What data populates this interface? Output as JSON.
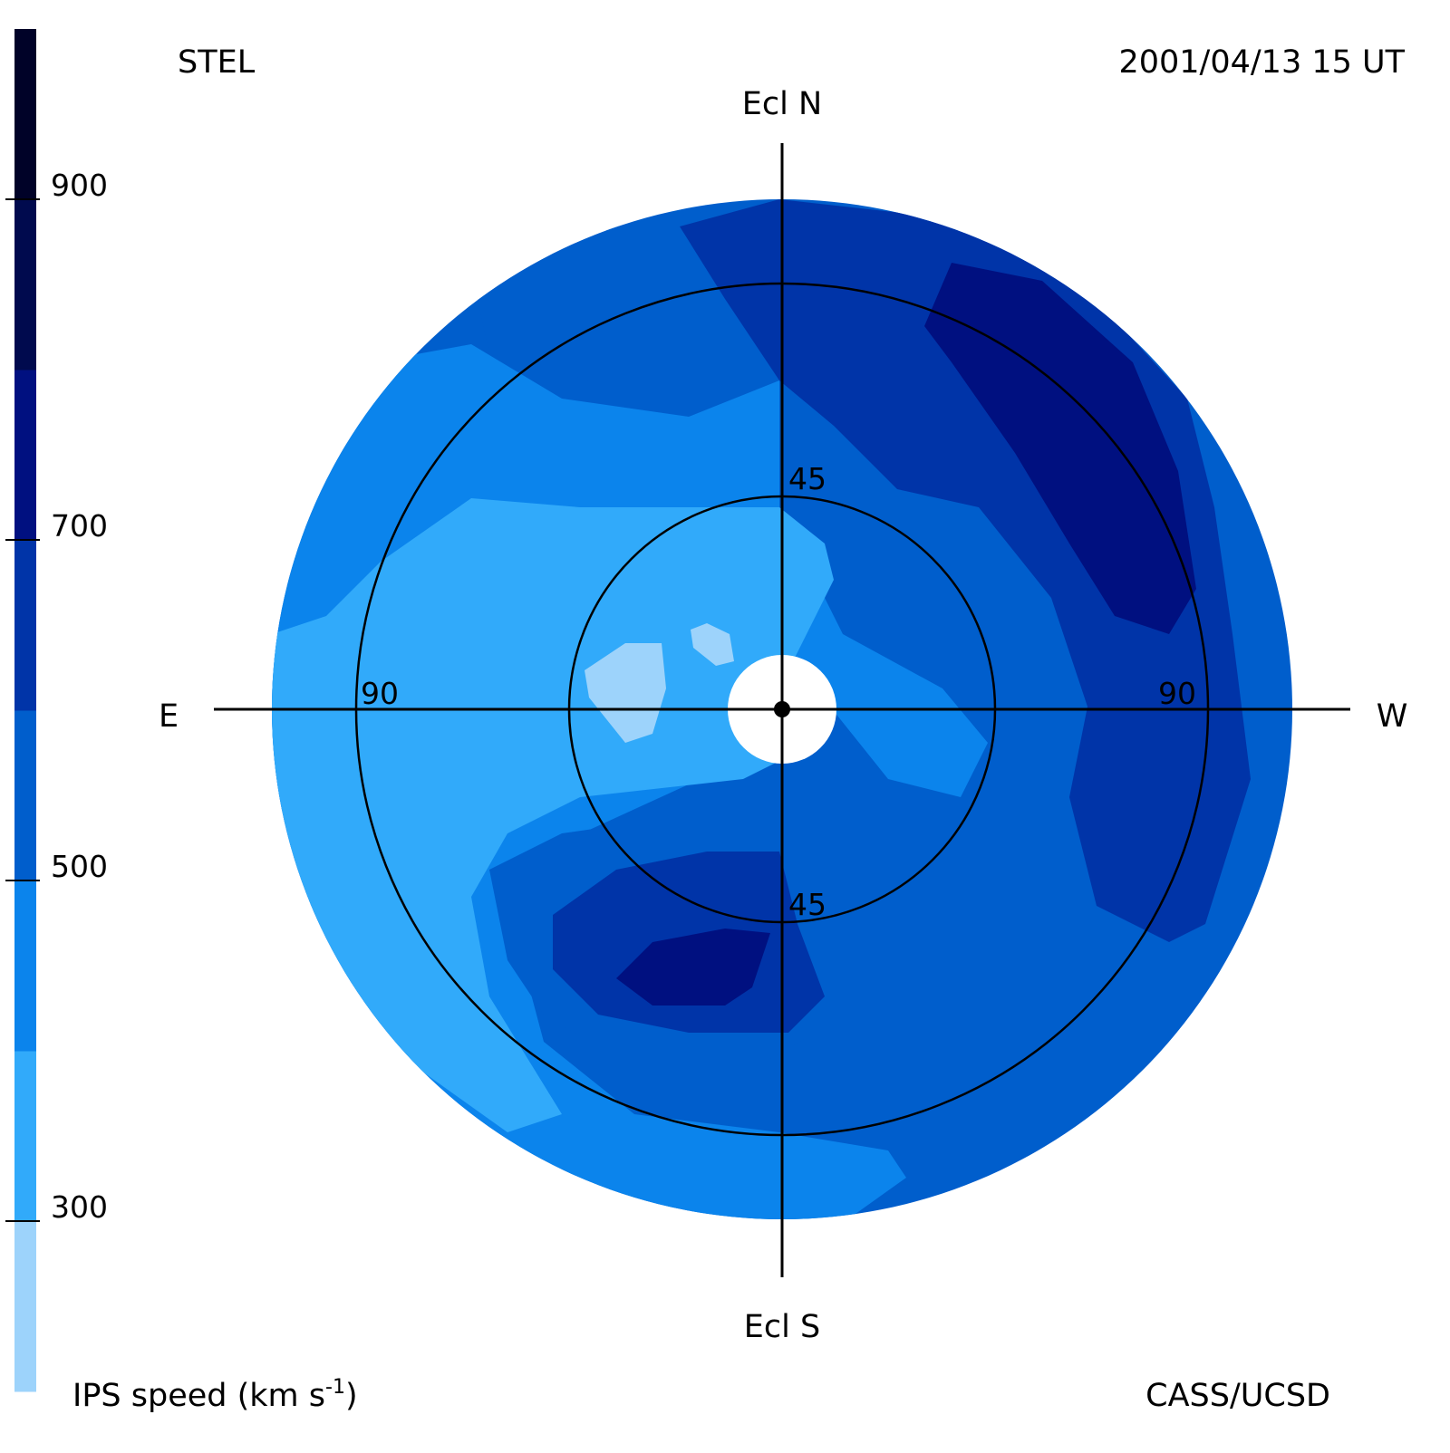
{
  "header": {
    "left": "STEL",
    "right": "2001/04/13 15 UT"
  },
  "footer": {
    "left_label": "IPS speed (km s",
    "left_sup": "-1",
    "left_close": ")",
    "right": "CASS/UCSD"
  },
  "chart_data": {
    "type": "heatmap",
    "projection": "fisheye sky map centred on the Sun",
    "direction_labels": {
      "top": "Ecl N",
      "bottom": "Ecl S",
      "left": "E",
      "right": "W"
    },
    "elongation_rings_deg": [
      45,
      90
    ],
    "ring_labels": {
      "n45": "45",
      "s45": "45",
      "e90": "90",
      "w90": "90"
    },
    "colorbar": {
      "ticks": [
        900,
        700,
        500,
        300
      ],
      "tick_labels": [
        "900",
        "700",
        "500",
        "300"
      ],
      "range": [
        200,
        1000
      ],
      "bin_width": 100,
      "levels": [
        {
          "min": 200,
          "max": 300,
          "color": "#9dd3fb"
        },
        {
          "min": 300,
          "max": 400,
          "color": "#31aafa"
        },
        {
          "min": 400,
          "max": 500,
          "color": "#0b84ec"
        },
        {
          "min": 500,
          "max": 600,
          "color": "#005ecc"
        },
        {
          "min": 600,
          "max": 700,
          "color": "#0034a8"
        },
        {
          "min": 700,
          "max": 800,
          "color": "#001080"
        },
        {
          "min": 800,
          "max": 900,
          "color": "#000a4e"
        },
        {
          "min": 900,
          "max": 1000,
          "color": "#000228"
        }
      ]
    },
    "regions": [
      {
        "speed_level": 400,
        "location": "east and south-east outer band"
      },
      {
        "speed_level": 500,
        "location": "north-east and west outer band"
      },
      {
        "speed_level": 600,
        "location": "north cap and south-east lobe"
      },
      {
        "speed_level": 700,
        "location": "north-west ring and south-east core"
      },
      {
        "speed_level": 300,
        "location": "near-Sun east patches"
      }
    ],
    "sun_occulted": true
  }
}
